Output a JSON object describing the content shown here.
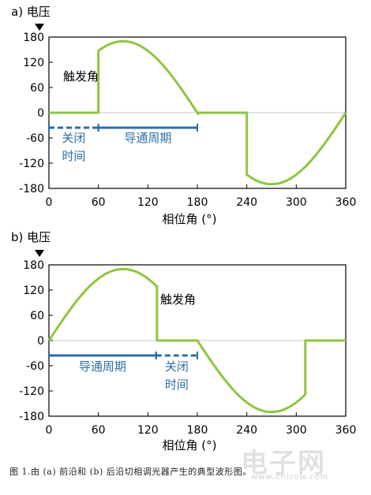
{
  "colors": {
    "curve": "#8dc63f",
    "annotation": "#2e6da4",
    "axis": "#000000",
    "zero_line": "#cccccc"
  },
  "caption": "图 1.由 (a) 前沿和 (b) 后沿切相调光器产生的典型波形图。",
  "watermark": {
    "text": "电子网",
    "url": "www.cntrow.com"
  },
  "chart_data": [
    {
      "panel": "a",
      "type": "line",
      "title": "a) 电压",
      "xlabel": "相位角 (°)",
      "ylabel": "电压",
      "xlim": [
        0,
        360
      ],
      "ylim": [
        -180,
        180
      ],
      "xticks": [
        0,
        60,
        120,
        180,
        240,
        300,
        360
      ],
      "yticks": [
        180,
        120,
        60,
        0,
        -60,
        -120,
        -180
      ],
      "grid": false,
      "amplitude": 170,
      "conduction": [
        [
          60,
          180
        ],
        [
          240,
          360
        ]
      ],
      "trigger_label": "触发角",
      "off_label": "关闭\n时间",
      "on_label": "导通周期",
      "off_span": [
        0,
        60
      ],
      "on_span": [
        60,
        180
      ]
    },
    {
      "panel": "b",
      "type": "line",
      "title": "b) 电压",
      "xlabel": "相位角 (°)",
      "ylabel": "电压",
      "xlim": [
        0,
        360
      ],
      "ylim": [
        -180,
        180
      ],
      "xticks": [
        0,
        60,
        120,
        180,
        240,
        300,
        360
      ],
      "yticks": [
        180,
        120,
        60,
        0,
        -60,
        -120,
        -180
      ],
      "grid": false,
      "amplitude": 170,
      "conduction": [
        [
          0,
          130
        ],
        [
          180,
          310
        ]
      ],
      "trigger_label": "触发角",
      "off_label": "关闭\n时间",
      "on_label": "导通周期",
      "off_span": [
        130,
        180
      ],
      "on_span": [
        0,
        130
      ]
    }
  ]
}
